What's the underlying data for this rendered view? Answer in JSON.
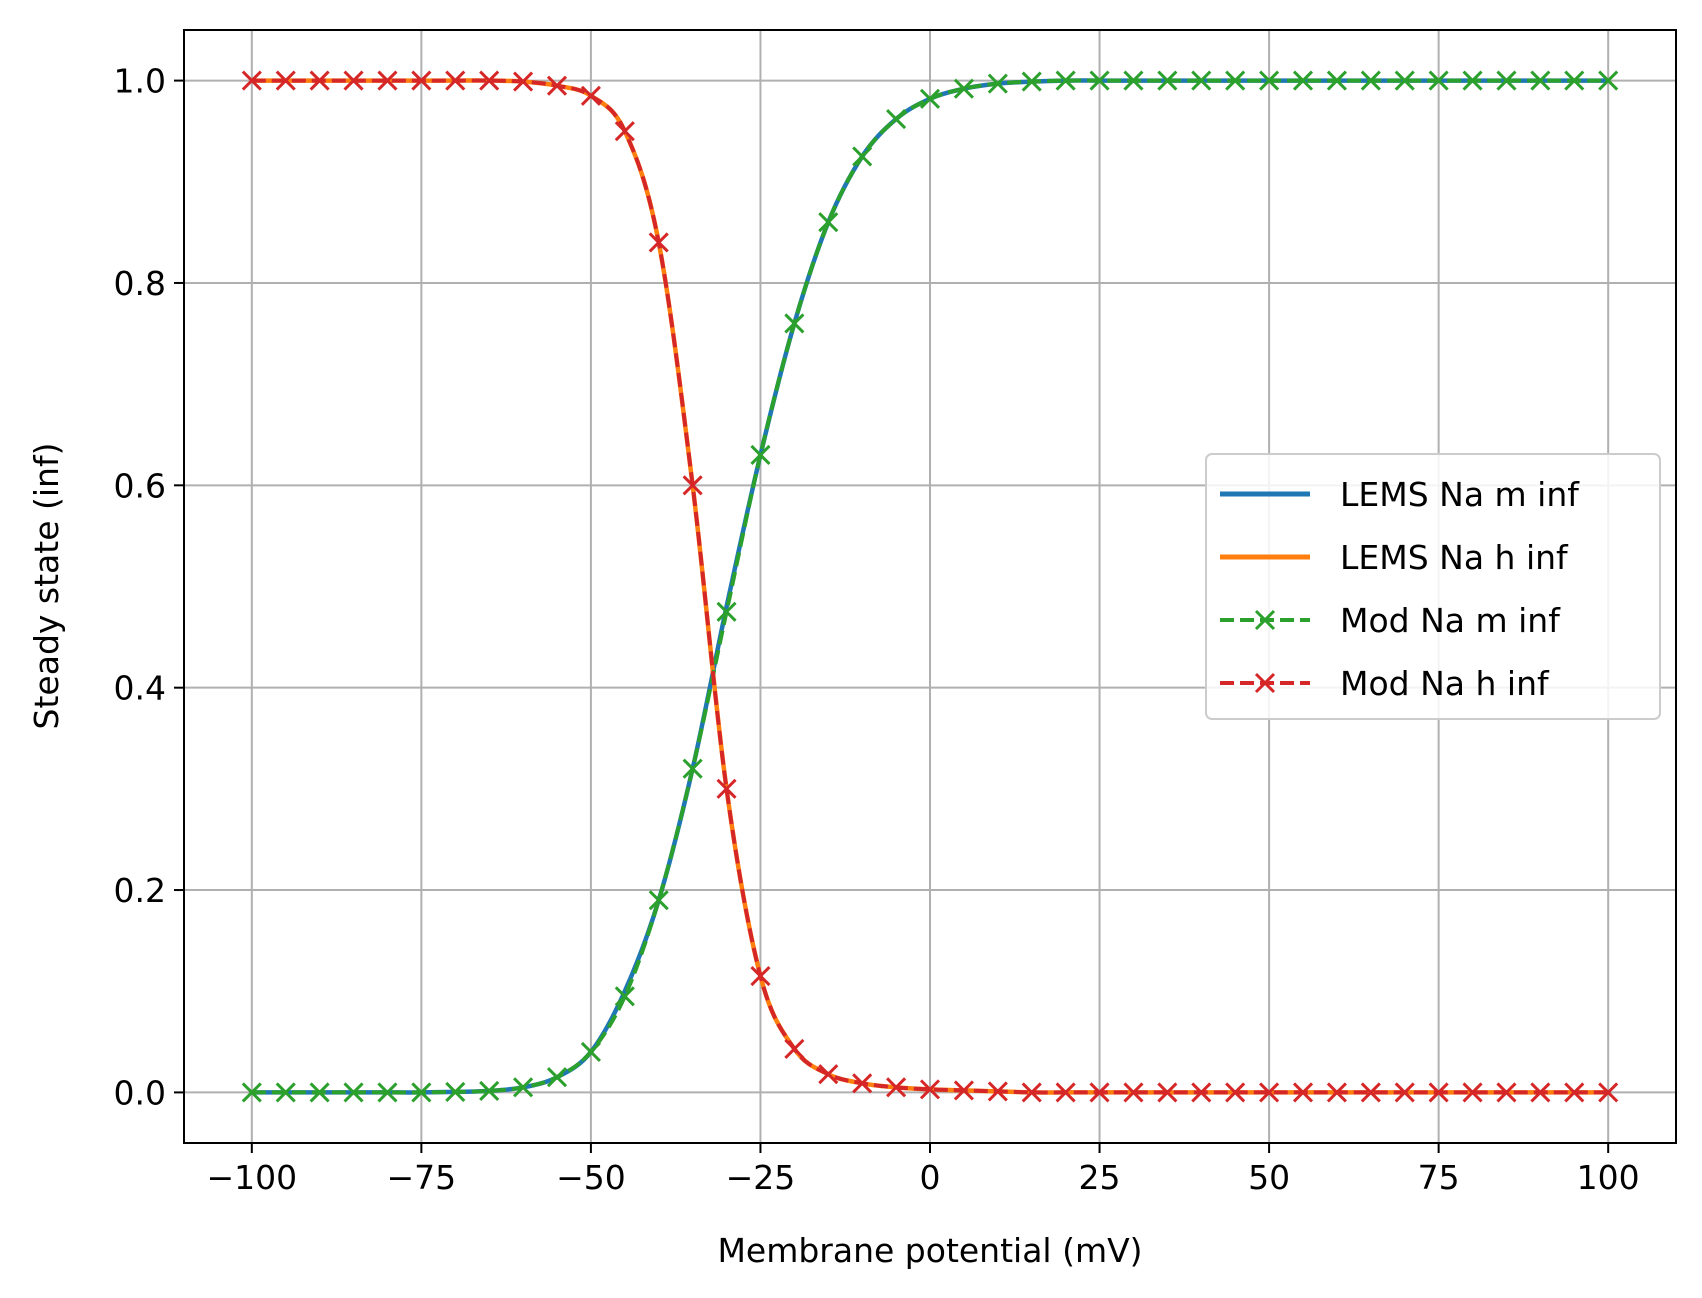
{
  "chart_data": {
    "type": "line",
    "xlabel": "Membrane potential (mV)",
    "ylabel": "Steady state (inf)",
    "xlim": [
      -110,
      110
    ],
    "ylim": [
      -0.05,
      1.05
    ],
    "x_ticks": [
      -100,
      -75,
      -50,
      -25,
      0,
      25,
      50,
      75,
      100
    ],
    "x_tick_labels": [
      "−100",
      "−75",
      "−50",
      "−25",
      "0",
      "25",
      "50",
      "75",
      "100"
    ],
    "y_ticks": [
      0.0,
      0.2,
      0.4,
      0.6,
      0.8,
      1.0
    ],
    "y_tick_labels": [
      "0.0",
      "0.2",
      "0.4",
      "0.6",
      "0.8",
      "1.0"
    ],
    "grid": true,
    "legend_position": "center-right",
    "x": [
      -100,
      -95,
      -90,
      -85,
      -80,
      -75,
      -70,
      -65,
      -60,
      -55,
      -50,
      -45,
      -40,
      -35,
      -30,
      -25,
      -20,
      -15,
      -10,
      -5,
      0,
      5,
      10,
      15,
      20,
      25,
      30,
      35,
      40,
      45,
      50,
      55,
      60,
      65,
      70,
      75,
      80,
      85,
      90,
      95,
      100
    ],
    "series": [
      {
        "name": "LEMS Na m inf",
        "color": "#1f77b4",
        "style": "solid",
        "marker": "none",
        "values": [
          0.0,
          0.0,
          0.0,
          0.0,
          0.0,
          0.0,
          0.0005,
          0.0015,
          0.005,
          0.015,
          0.04,
          0.1,
          0.19,
          0.32,
          0.48,
          0.63,
          0.76,
          0.86,
          0.925,
          0.962,
          0.982,
          0.992,
          0.997,
          0.999,
          1.0,
          1.0,
          1.0,
          1.0,
          1.0,
          1.0,
          1.0,
          1.0,
          1.0,
          1.0,
          1.0,
          1.0,
          1.0,
          1.0,
          1.0,
          1.0,
          1.0
        ]
      },
      {
        "name": "LEMS Na h inf",
        "color": "#ff7f0e",
        "style": "solid",
        "marker": "none",
        "values": [
          1.0,
          1.0,
          1.0,
          1.0,
          1.0,
          1.0,
          1.0,
          1.0,
          0.999,
          0.995,
          0.985,
          0.95,
          0.84,
          0.6,
          0.3,
          0.115,
          0.043,
          0.018,
          0.009,
          0.005,
          0.003,
          0.002,
          0.001,
          0.0,
          0.0,
          0.0,
          0.0,
          0.0,
          0.0,
          0.0,
          0.0,
          0.0,
          0.0,
          0.0,
          0.0,
          0.0,
          0.0,
          0.0,
          0.0,
          0.0,
          0.0
        ]
      },
      {
        "name": "Mod Na m inf",
        "color": "#2ca02c",
        "style": "dashed",
        "marker": "x",
        "values": [
          0.0,
          0.0,
          0.0,
          0.0,
          0.0,
          0.0,
          0.0005,
          0.0015,
          0.005,
          0.015,
          0.04,
          0.095,
          0.19,
          0.32,
          0.475,
          0.63,
          0.76,
          0.86,
          0.925,
          0.962,
          0.982,
          0.992,
          0.997,
          0.999,
          1.0,
          1.0,
          1.0,
          1.0,
          1.0,
          1.0,
          1.0,
          1.0,
          1.0,
          1.0,
          1.0,
          1.0,
          1.0,
          1.0,
          1.0,
          1.0,
          1.0
        ]
      },
      {
        "name": "Mod Na h inf",
        "color": "#d62728",
        "style": "dashed",
        "marker": "x",
        "values": [
          1.0,
          1.0,
          1.0,
          1.0,
          1.0,
          1.0,
          1.0,
          1.0,
          0.999,
          0.995,
          0.985,
          0.95,
          0.84,
          0.6,
          0.3,
          0.115,
          0.043,
          0.018,
          0.009,
          0.005,
          0.003,
          0.002,
          0.001,
          0.0,
          0.0,
          0.0,
          0.0,
          0.0,
          0.0,
          0.0,
          0.0,
          0.0,
          0.0,
          0.0,
          0.0,
          0.0,
          0.0,
          0.0,
          0.0,
          0.0,
          0.0
        ]
      }
    ]
  }
}
